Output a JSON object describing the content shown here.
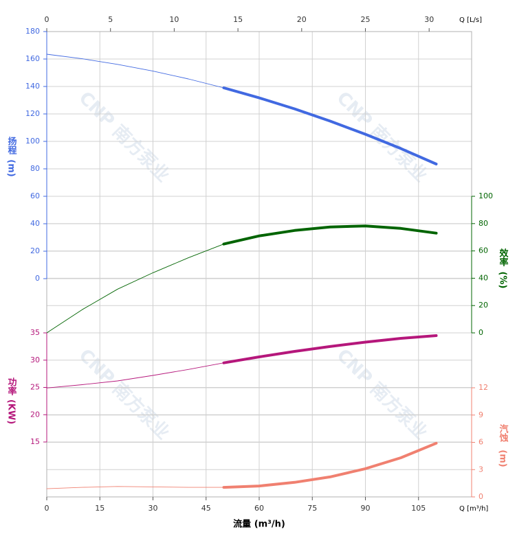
{
  "chart_data": {
    "type": "line",
    "x_label": "流量 (m³/h)",
    "x_unit_label": "Q [m³/h]",
    "x2_unit_label": "Q [L/s]",
    "watermark": "CNP 南方泵业",
    "grid": true,
    "x": [
      0,
      10,
      20,
      30,
      40,
      50,
      60,
      70,
      80,
      90,
      100,
      110
    ],
    "xlim": [
      0,
      120
    ],
    "xticks": [
      0,
      15,
      30,
      45,
      60,
      75,
      90,
      105
    ],
    "x2lim": [
      0,
      33.333
    ],
    "x2ticks": [
      0,
      5,
      10,
      15,
      20,
      25,
      30
    ],
    "operating_range": [
      50,
      110
    ],
    "series": [
      {
        "name": "扬程",
        "unit": "(m)",
        "color": "#4169e1",
        "side": "left",
        "ylim": [
          0,
          180
        ],
        "yticks": [
          0,
          20,
          40,
          60,
          80,
          100,
          120,
          140,
          160,
          180
        ],
        "values": [
          163.5,
          160.2,
          156.1,
          151.2,
          145.5,
          139.0,
          131.7,
          123.7,
          114.8,
          105.2,
          94.8,
          83.5
        ]
      },
      {
        "name": "效率",
        "unit": "(%)",
        "color": "#006400",
        "side": "right",
        "ylim": [
          0,
          100
        ],
        "yticks": [
          0,
          20,
          40,
          60,
          80,
          100
        ],
        "values": [
          0,
          17,
          32,
          44,
          55,
          65,
          71,
          75,
          77.5,
          78.3,
          76.5,
          73
        ]
      },
      {
        "name": "功率",
        "unit": "(KW)",
        "color": "#b5177b",
        "side": "left",
        "ylim": [
          15,
          35
        ],
        "yticks": [
          15,
          20,
          25,
          30,
          35
        ],
        "values": [
          24.9,
          25.5,
          26.2,
          27.2,
          28.3,
          29.5,
          30.6,
          31.6,
          32.5,
          33.3,
          34.0,
          34.5
        ]
      },
      {
        "name": "汽蚀",
        "unit": "(m)",
        "color": "#f08070",
        "side": "right",
        "ylim": [
          0,
          12
        ],
        "yticks": [
          0,
          3,
          6,
          9,
          12
        ],
        "values": [
          0.9,
          1.05,
          1.15,
          1.1,
          1.05,
          1.05,
          1.2,
          1.6,
          2.2,
          3.1,
          4.3,
          5.9
        ]
      }
    ]
  }
}
